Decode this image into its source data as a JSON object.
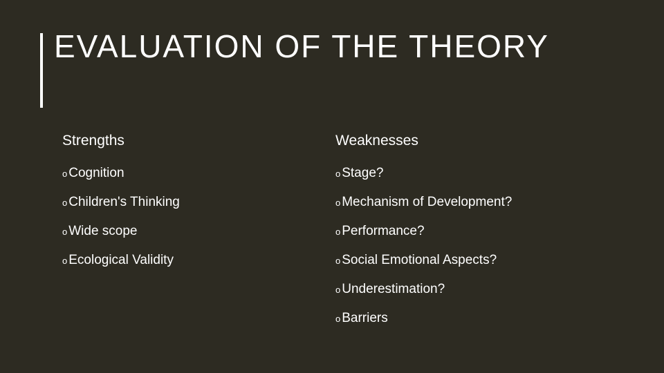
{
  "slide": {
    "background_color": "#2d2b22",
    "text_color": "#ffffff",
    "accent_bar_color": "#ffffff",
    "title": "EVALUATION OF THE THEORY",
    "title_fontsize": 46,
    "title_letter_spacing": 2,
    "header_fontsize": 21,
    "item_fontsize": 19,
    "bullet_char": "o",
    "columns": [
      {
        "header": "Strengths",
        "items": [
          "Cognition",
          "Children's Thinking",
          "Wide scope",
          "Ecological Validity"
        ]
      },
      {
        "header": "Weaknesses",
        "items": [
          "Stage?",
          "Mechanism of Development?",
          "Performance?",
          "Social Emotional Aspects?",
          "Underestimation?",
          "Barriers"
        ]
      }
    ]
  }
}
